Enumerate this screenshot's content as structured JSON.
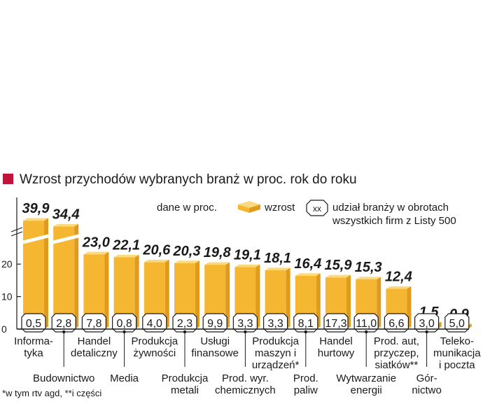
{
  "chart_data": {
    "type": "bar",
    "title": "Wzrost przychodów wybranych branż w proc. rok do roku",
    "unit_note": "dane w proc.",
    "legend": {
      "growth_label": "wzrost",
      "share_symbol": "xx",
      "share_label_line1": "udział branży w obrotach",
      "share_label_line2": "wszystkich firm z Listy 500"
    },
    "y_ticks": [
      "0",
      "10",
      "20"
    ],
    "ylim": [
      0,
      40
    ],
    "axis_break_above": 30,
    "footnote": "*w tym rtv agd,  **i części",
    "categories": [
      {
        "label_lines": [
          "Informa-",
          "tyka"
        ],
        "value": 39.9,
        "value_label": "39,9",
        "share": "0,5",
        "row": "upper"
      },
      {
        "label_lines": [
          "Budownictwo"
        ],
        "value": 34.4,
        "value_label": "34,4",
        "share": "2,8",
        "row": "lower"
      },
      {
        "label_lines": [
          "Handel",
          "detaliczny"
        ],
        "value": 23.0,
        "value_label": "23,0",
        "share": "7,8",
        "row": "upper"
      },
      {
        "label_lines": [
          "Media"
        ],
        "value": 22.1,
        "value_label": "22,1",
        "share": "0,8",
        "row": "lower"
      },
      {
        "label_lines": [
          "Produkcja",
          "żywności"
        ],
        "value": 20.6,
        "value_label": "20,6",
        "share": "4,0",
        "row": "upper"
      },
      {
        "label_lines": [
          "Produkcja",
          "metali"
        ],
        "value": 20.3,
        "value_label": "20,3",
        "share": "2,3",
        "row": "lower"
      },
      {
        "label_lines": [
          "Usługi",
          "finansowe"
        ],
        "value": 19.8,
        "value_label": "19,8",
        "share": "9,9",
        "row": "upper"
      },
      {
        "label_lines": [
          "Prod. wyr.",
          "chemicznych"
        ],
        "value": 19.1,
        "value_label": "19,1",
        "share": "3,3",
        "row": "lower"
      },
      {
        "label_lines": [
          "Produkcja",
          "maszyn i",
          "urządzeń*"
        ],
        "value": 18.1,
        "value_label": "18,1",
        "share": "3,3",
        "row": "upper"
      },
      {
        "label_lines": [
          "Prod.",
          "paliw"
        ],
        "value": 16.4,
        "value_label": "16,4",
        "share": "8,1",
        "row": "lower"
      },
      {
        "label_lines": [
          "Handel",
          "hurtowy"
        ],
        "value": 15.9,
        "value_label": "15,9",
        "share": "17,3",
        "row": "upper"
      },
      {
        "label_lines": [
          "Wytwarzanie",
          "energii"
        ],
        "value": 15.3,
        "value_label": "15,3",
        "share": "11,0",
        "row": "lower"
      },
      {
        "label_lines": [
          "Prod. aut,",
          "przyczep,",
          "siatków**"
        ],
        "value": 12.4,
        "value_label": "12,4",
        "share": "6,6",
        "row": "upper"
      },
      {
        "label_lines": [
          "Gór-",
          "nictwo"
        ],
        "value": 1.5,
        "value_label": "1,5",
        "share": "3,0",
        "row": "lower"
      },
      {
        "label_lines": [
          "Teleko-",
          "munikacja",
          "i poczta"
        ],
        "value": 0.9,
        "value_label": "0,9",
        "share": "5,0",
        "row": "upper"
      }
    ],
    "colors": {
      "bar_front": "#f5b732",
      "bar_side": "#e09a1c",
      "bar_top": "#fbd97e",
      "title_marker": "#c0143c",
      "text": "#1a1a1a"
    }
  }
}
